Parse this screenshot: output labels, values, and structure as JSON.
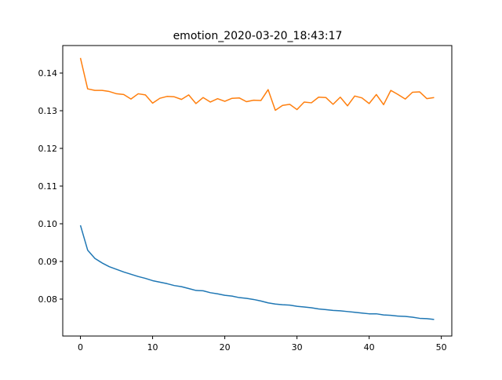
{
  "chart_data": {
    "type": "line",
    "title": "emotion_2020-03-20_18:43:17",
    "xlabel": "",
    "ylabel": "",
    "xlim": [
      -2.45,
      51.45
    ],
    "ylim": [
      0.0702,
      0.1473
    ],
    "x_ticks": [
      0,
      10,
      20,
      30,
      40,
      50
    ],
    "y_ticks": [
      0.08,
      0.09,
      0.1,
      0.11,
      0.12,
      0.13,
      0.14
    ],
    "y_tick_labels": [
      "0.08",
      "0.09",
      "0.10",
      "0.11",
      "0.12",
      "0.13",
      "0.14"
    ],
    "grid": false,
    "legend": "none",
    "x": [
      0,
      1,
      2,
      3,
      4,
      5,
      6,
      7,
      8,
      9,
      10,
      11,
      12,
      13,
      14,
      15,
      16,
      17,
      18,
      19,
      20,
      21,
      22,
      23,
      24,
      25,
      26,
      27,
      28,
      29,
      30,
      31,
      32,
      33,
      34,
      35,
      36,
      37,
      38,
      39,
      40,
      41,
      42,
      43,
      44,
      45,
      46,
      47,
      48,
      49
    ],
    "series": [
      {
        "color": "#1f77b4",
        "values": [
          0.0996,
          0.093,
          0.0908,
          0.0896,
          0.0886,
          0.0879,
          0.0872,
          0.0866,
          0.086,
          0.0855,
          0.0849,
          0.0845,
          0.0841,
          0.0836,
          0.0833,
          0.0828,
          0.0823,
          0.0822,
          0.0817,
          0.0814,
          0.081,
          0.0808,
          0.0804,
          0.0802,
          0.0799,
          0.0795,
          0.079,
          0.0787,
          0.0785,
          0.0784,
          0.0781,
          0.0779,
          0.0777,
          0.0774,
          0.0772,
          0.077,
          0.0769,
          0.0767,
          0.0765,
          0.0763,
          0.0761,
          0.0761,
          0.0758,
          0.0757,
          0.0755,
          0.0754,
          0.0752,
          0.0749,
          0.0748,
          0.0746
        ]
      },
      {
        "color": "#ff7f0e",
        "values": [
          0.144,
          0.1358,
          0.1354,
          0.1354,
          0.1351,
          0.1345,
          0.1343,
          0.1331,
          0.1345,
          0.1342,
          0.132,
          0.1333,
          0.1338,
          0.1337,
          0.133,
          0.1342,
          0.1319,
          0.1335,
          0.1323,
          0.1332,
          0.1325,
          0.1333,
          0.1334,
          0.1324,
          0.1328,
          0.1327,
          0.1356,
          0.1301,
          0.1314,
          0.1317,
          0.1303,
          0.1323,
          0.1321,
          0.1336,
          0.1335,
          0.1317,
          0.1336,
          0.1313,
          0.1339,
          0.1334,
          0.1319,
          0.1343,
          0.1316,
          0.1354,
          0.1343,
          0.1331,
          0.1349,
          0.135,
          0.1332,
          0.1335
        ]
      }
    ]
  }
}
